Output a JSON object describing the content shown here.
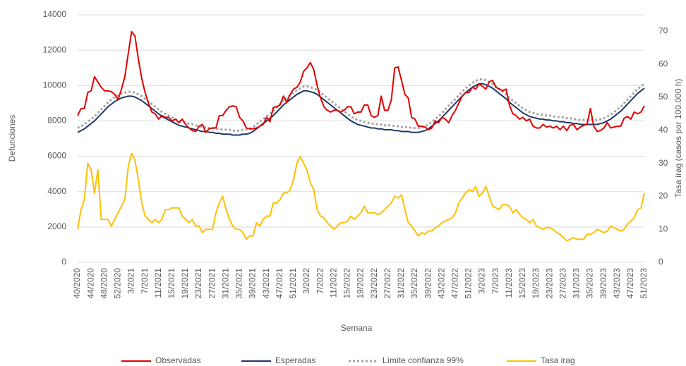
{
  "chart_data": {
    "type": "line",
    "y_label": "Defunciones",
    "y2_label": "Tasa irag (casos por 100.000 h)",
    "x_label": "Semana",
    "categories": [
      "40/2020",
      null,
      null,
      null,
      "44/2020",
      null,
      null,
      null,
      "48/2020",
      null,
      null,
      null,
      "52/2020",
      null,
      null,
      null,
      "3/2021",
      null,
      null,
      null,
      "7/2021",
      null,
      null,
      null,
      "11/2021",
      null,
      null,
      null,
      "15/2021",
      null,
      null,
      null,
      "19/2021",
      null,
      null,
      null,
      "23/2021",
      null,
      null,
      null,
      "27/2021",
      null,
      null,
      null,
      "31/2021",
      null,
      null,
      null,
      "35/2021",
      null,
      null,
      null,
      "39/2021",
      null,
      null,
      null,
      "43/2021",
      null,
      null,
      null,
      "47/2021",
      null,
      null,
      null,
      "51/2021",
      null,
      null,
      null,
      "3/2022",
      null,
      null,
      null,
      "7/2022",
      null,
      null,
      null,
      "11/2022",
      null,
      null,
      null,
      "15/2022",
      null,
      null,
      null,
      "19/2022",
      null,
      null,
      null,
      "23/2022",
      null,
      null,
      null,
      "27/2022",
      null,
      null,
      null,
      "31/2022",
      null,
      null,
      null,
      "35/2022",
      null,
      null,
      null,
      "39/2022",
      null,
      null,
      null,
      "43/2022",
      null,
      null,
      null,
      "47/2022",
      null,
      null,
      null,
      "51/2022",
      null,
      null,
      null,
      "3/2023",
      null,
      null,
      null,
      "7/2023",
      null,
      null,
      null,
      "11/2023",
      null,
      null,
      null,
      "15/2023",
      null,
      null,
      null,
      "19/2023",
      null,
      null,
      null,
      "23/2023",
      null,
      null,
      null,
      "27/2023",
      null,
      null,
      null,
      "31/2023",
      null,
      null,
      null,
      "35/2023",
      null,
      null,
      null,
      "39/2023",
      null,
      null,
      null,
      "43/2023",
      null,
      null,
      null,
      "47/2023",
      null,
      null,
      null,
      "51/2023"
    ],
    "series": [
      {
        "name": "Observadas",
        "color": "#e00000",
        "style": "solid",
        "values": [
          8300,
          8700,
          8700,
          9600,
          9700,
          10500,
          10200,
          9900,
          9700,
          9700,
          9650,
          9500,
          9200,
          9800,
          10500,
          11800,
          13050,
          12800,
          11500,
          10400,
          9600,
          9000,
          8500,
          8400,
          8100,
          8300,
          8200,
          8200,
          8000,
          8100,
          7900,
          8100,
          7800,
          7600,
          7450,
          7400,
          7700,
          7800,
          7350,
          7550,
          7600,
          7600,
          8300,
          8300,
          8600,
          8800,
          8850,
          8800,
          8200,
          8000,
          7600,
          7550,
          7550,
          7600,
          7700,
          7800,
          8200,
          7950,
          8750,
          8800,
          8900,
          9400,
          9050,
          9500,
          9800,
          9900,
          10200,
          10800,
          11000,
          11300,
          10900,
          10000,
          9300,
          8800,
          8600,
          8500,
          8600,
          8600,
          8500,
          8600,
          8800,
          8800,
          8400,
          8500,
          8500,
          8900,
          8900,
          8300,
          8200,
          8300,
          9400,
          8600,
          8600,
          9200,
          11000,
          11050,
          10300,
          9500,
          9300,
          8200,
          8100,
          7700,
          7700,
          7650,
          7500,
          7600,
          8000,
          7900,
          8200,
          8100,
          7900,
          8300,
          8600,
          9000,
          9400,
          9600,
          9600,
          9900,
          9800,
          10100,
          9950,
          9800,
          10200,
          10300,
          9900,
          9800,
          9700,
          9800,
          8900,
          8400,
          8300,
          8100,
          8200,
          8000,
          8100,
          7700,
          7600,
          7600,
          7800,
          7650,
          7700,
          7600,
          7700,
          7500,
          7700,
          7450,
          7750,
          7800,
          7500,
          7650,
          7750,
          7800,
          8700,
          7700,
          7400,
          7450,
          7600,
          7900,
          7600,
          7650,
          7700,
          7700,
          8150,
          8250,
          8100,
          8500,
          8400,
          8500,
          8850
        ]
      },
      {
        "name": "Esperadas",
        "color": "#1f3864",
        "style": "solid",
        "values": [
          7350,
          7450,
          7550,
          7700,
          7850,
          8000,
          8200,
          8400,
          8600,
          8800,
          8950,
          9100,
          9200,
          9300,
          9350,
          9400,
          9400,
          9350,
          9250,
          9150,
          9000,
          8850,
          8700,
          8550,
          8400,
          8250,
          8150,
          8050,
          7950,
          7850,
          7750,
          7700,
          7650,
          7600,
          7550,
          7500,
          7450,
          7400,
          7400,
          7350,
          7350,
          7300,
          7300,
          7250,
          7250,
          7250,
          7200,
          7200,
          7200,
          7250,
          7250,
          7300,
          7400,
          7550,
          7700,
          7850,
          8000,
          8150,
          8300,
          8500,
          8700,
          8900,
          9050,
          9200,
          9350,
          9500,
          9600,
          9700,
          9700,
          9650,
          9600,
          9500,
          9350,
          9200,
          9050,
          8900,
          8750,
          8600,
          8450,
          8300,
          8150,
          8000,
          7900,
          7800,
          7750,
          7700,
          7650,
          7600,
          7600,
          7550,
          7550,
          7500,
          7500,
          7500,
          7450,
          7450,
          7400,
          7400,
          7400,
          7350,
          7350,
          7350,
          7400,
          7450,
          7550,
          7700,
          7850,
          8000,
          8200,
          8400,
          8600,
          8800,
          9000,
          9200,
          9400,
          9600,
          9750,
          9900,
          10000,
          10100,
          10100,
          10050,
          9950,
          9850,
          9700,
          9550,
          9400,
          9250,
          9050,
          8900,
          8750,
          8600,
          8450,
          8350,
          8250,
          8200,
          8150,
          8100,
          8100,
          8050,
          8050,
          8000,
          8000,
          7950,
          7950,
          7900,
          7900,
          7850,
          7850,
          7800,
          7800,
          7800,
          7800,
          7800,
          7800,
          7850,
          7900,
          8000,
          8100,
          8250,
          8400,
          8550,
          8750,
          8950,
          9150,
          9350,
          9550,
          9700,
          9850
        ]
      },
      {
        "name": "Límite confianza 99%",
        "color": "#a6a6a6",
        "style": "dotted",
        "values": [
          7600,
          7700,
          7800,
          7950,
          8100,
          8250,
          8450,
          8650,
          8850,
          9050,
          9200,
          9350,
          9450,
          9550,
          9600,
          9650,
          9650,
          9600,
          9500,
          9400,
          9250,
          9100,
          8950,
          8800,
          8650,
          8500,
          8400,
          8300,
          8200,
          8100,
          8000,
          7950,
          7900,
          7850,
          7800,
          7750,
          7700,
          7650,
          7650,
          7600,
          7600,
          7550,
          7550,
          7500,
          7500,
          7500,
          7450,
          7450,
          7450,
          7500,
          7500,
          7550,
          7650,
          7800,
          7950,
          8100,
          8250,
          8400,
          8550,
          8750,
          8950,
          9150,
          9300,
          9450,
          9600,
          9750,
          9850,
          9950,
          9950,
          9900,
          9850,
          9750,
          9600,
          9450,
          9300,
          9150,
          9000,
          8850,
          8700,
          8550,
          8400,
          8250,
          8150,
          8050,
          8000,
          7950,
          7900,
          7850,
          7850,
          7800,
          7800,
          7750,
          7750,
          7750,
          7700,
          7700,
          7650,
          7650,
          7650,
          7600,
          7600,
          7600,
          7650,
          7700,
          7800,
          7950,
          8100,
          8250,
          8450,
          8650,
          8850,
          9050,
          9250,
          9450,
          9650,
          9850,
          10000,
          10150,
          10250,
          10350,
          10350,
          10300,
          10200,
          10100,
          9950,
          9800,
          9650,
          9500,
          9300,
          9150,
          9000,
          8850,
          8700,
          8600,
          8500,
          8450,
          8400,
          8350,
          8350,
          8300,
          8300,
          8250,
          8250,
          8200,
          8200,
          8150,
          8150,
          8100,
          8100,
          8050,
          8050,
          8050,
          8050,
          8050,
          8050,
          8100,
          8150,
          8250,
          8350,
          8500,
          8650,
          8800,
          9000,
          9200,
          9400,
          9600,
          9800,
          9950,
          10100
        ]
      },
      {
        "name": "Tasa irag",
        "color": "#ffc000",
        "style": "solid",
        "axis": "y2",
        "values": [
          10,
          16,
          19,
          30,
          28,
          21,
          28,
          13,
          13,
          13,
          11,
          13,
          15,
          17,
          19,
          29,
          33,
          31,
          25,
          18,
          14,
          13,
          12,
          13,
          12,
          13,
          16,
          16,
          16.5,
          16.5,
          16.5,
          14,
          13,
          12,
          13,
          11,
          11,
          9,
          10,
          10,
          10,
          15,
          18,
          20,
          16,
          13,
          11,
          10,
          10,
          9,
          7,
          8,
          8,
          12,
          11,
          13,
          14,
          14,
          18,
          18,
          19,
          21,
          21,
          22,
          25,
          30,
          32,
          30,
          28,
          24,
          22,
          16,
          14,
          13.5,
          12,
          11,
          10,
          11,
          12,
          12,
          12.5,
          14,
          13,
          14,
          15,
          17,
          15,
          15,
          15,
          14.5,
          15,
          16,
          17,
          18,
          20,
          19.5,
          20.5,
          16,
          12,
          11,
          9.5,
          8,
          9,
          8.5,
          9.5,
          9.5,
          10.5,
          11,
          12,
          12.5,
          13,
          13.5,
          15,
          18,
          19.5,
          21,
          22,
          21.5,
          23,
          20,
          21,
          23,
          20,
          17,
          16.5,
          16,
          17.5,
          17.5,
          17,
          15,
          16,
          14.5,
          13.5,
          13,
          12,
          13,
          11,
          10.5,
          10,
          10.5,
          10.5,
          10,
          9,
          8.5,
          7.5,
          6.5,
          7,
          7.5,
          7,
          7,
          7,
          8.5,
          8.5,
          9,
          10,
          9.5,
          9,
          9.5,
          11,
          10.5,
          10,
          9.5,
          10,
          11.5,
          12.5,
          13.5,
          16,
          16.5,
          21
        ]
      }
    ],
    "ylim": [
      0,
      14000
    ],
    "yticks": [
      0,
      2000,
      4000,
      6000,
      8000,
      10000,
      12000,
      14000
    ],
    "y2lim": [
      0,
      75
    ],
    "y2ticks": [
      0,
      10,
      20,
      30,
      40,
      50,
      60,
      70
    ],
    "grid": true,
    "legend": "bottom"
  }
}
